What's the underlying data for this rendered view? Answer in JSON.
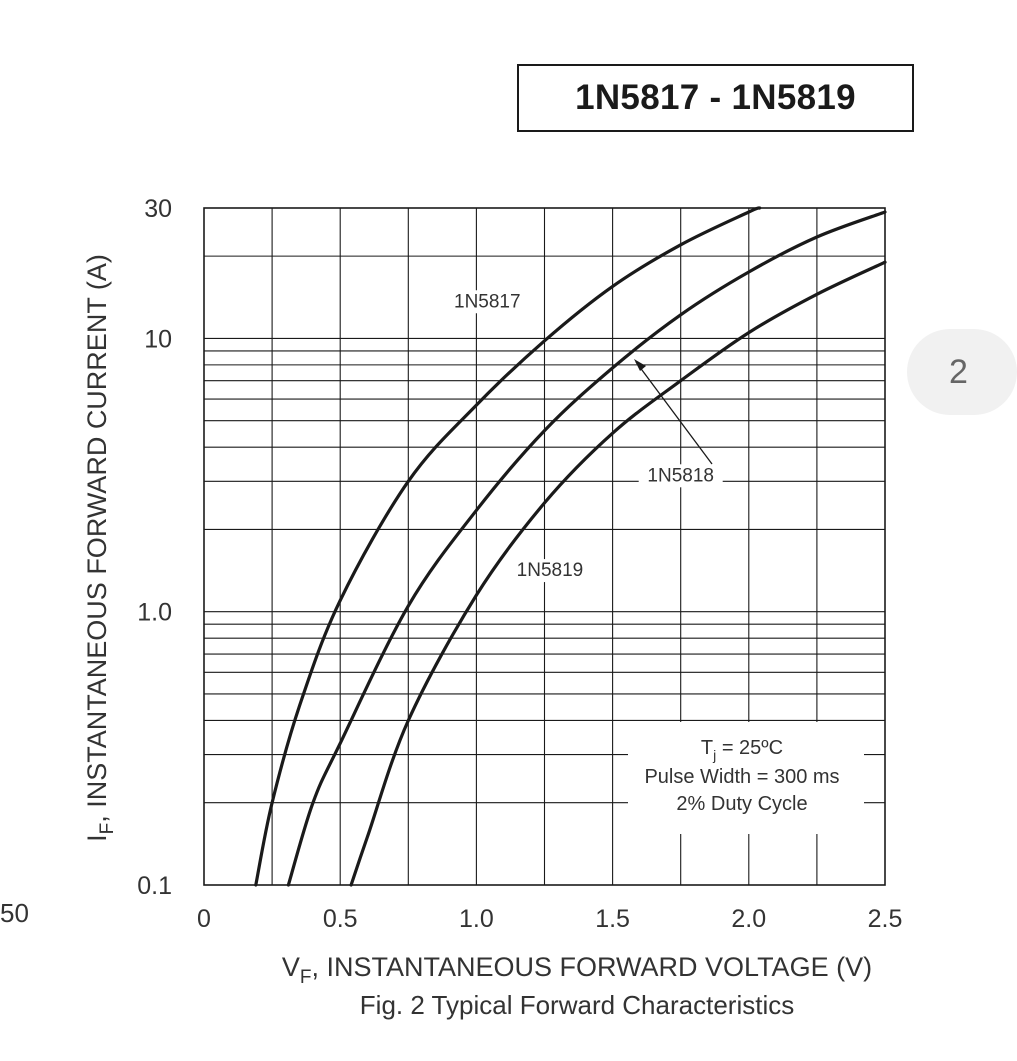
{
  "header": {
    "part_range": "1N5817 - 1N5819"
  },
  "page_tab": {
    "label": "2"
  },
  "margin_fragment": {
    "text": "50"
  },
  "chart_data": {
    "type": "line",
    "caption": "Fig. 2  Typical Forward Characteristics",
    "xlabel_symbol": "V",
    "xlabel_sub": "F",
    "xlabel_text": ", INSTANTANEOUS FORWARD VOLTAGE (V)",
    "ylabel_symbol": "I",
    "ylabel_sub": "F",
    "ylabel_text": ", INSTANTANEOUS FORWARD CURRENT (A)",
    "xlim": [
      0,
      2.5
    ],
    "ylim": [
      0.1,
      30
    ],
    "yscale": "log",
    "x_ticks": [
      0,
      0.5,
      1.0,
      1.5,
      2.0,
      2.5
    ],
    "x_tick_labels": [
      "0",
      "0.5",
      "1.0",
      "1.5",
      "2.0",
      "2.5"
    ],
    "y_ticks": [
      0.1,
      1.0,
      10,
      30
    ],
    "y_tick_labels": [
      "0.1",
      "1.0",
      "10",
      "30"
    ],
    "grid": true,
    "series": [
      {
        "name": "1N5817",
        "x": [
          0.19,
          0.25,
          0.35,
          0.5,
          0.75,
          1.0,
          1.25,
          1.5,
          1.75,
          2.0,
          2.04
        ],
        "y": [
          0.1,
          0.2,
          0.45,
          1.1,
          3.0,
          5.7,
          9.8,
          15.5,
          22,
          29,
          30
        ]
      },
      {
        "name": "1N5818",
        "x": [
          0.31,
          0.4,
          0.5,
          0.75,
          1.0,
          1.25,
          1.5,
          1.75,
          2.0,
          2.25,
          2.5
        ],
        "y": [
          0.1,
          0.2,
          0.33,
          1.05,
          2.35,
          4.6,
          7.8,
          12.2,
          17.5,
          23.5,
          29
        ]
      },
      {
        "name": "1N5819",
        "x": [
          0.54,
          0.6,
          0.75,
          1.0,
          1.25,
          1.5,
          1.75,
          2.0,
          2.25,
          2.5
        ],
        "y": [
          0.1,
          0.15,
          0.4,
          1.15,
          2.5,
          4.5,
          7.0,
          10.5,
          14.5,
          19
        ]
      }
    ],
    "annotation": {
      "tj_symbol": "T",
      "tj_sub": "j",
      "tj_value": " = 25ºC",
      "line2": "Pulse Width = 300 ms",
      "line3": "2% Duty Cycle"
    }
  }
}
